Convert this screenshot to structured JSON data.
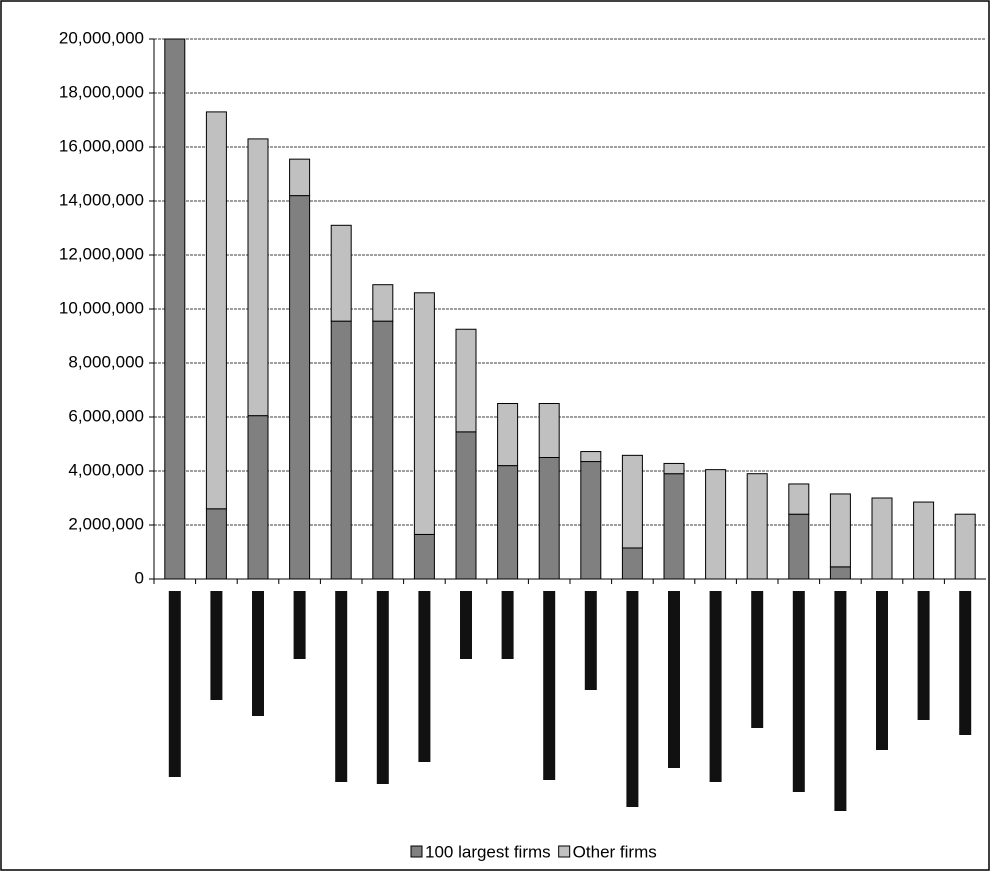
{
  "chart_data": {
    "type": "stacked-bar",
    "categories": [
      null,
      null,
      null,
      null,
      null,
      null,
      null,
      null,
      null,
      null,
      null,
      null,
      null,
      null,
      null,
      null,
      null,
      null,
      null,
      null
    ],
    "series": [
      {
        "name": "100 largest firms",
        "color": "#808080",
        "values": [
          20000000,
          2600000,
          6050000,
          14200000,
          9550000,
          9550000,
          1650000,
          5450000,
          4200000,
          4500000,
          4350000,
          1150000,
          3900000,
          0,
          0,
          2400000,
          450000,
          0,
          0,
          0
        ]
      },
      {
        "name": "Other firms",
        "color": "#c0c0c0",
        "values": [
          0,
          14700000,
          10250000,
          1350000,
          3550000,
          1350000,
          8950000,
          3800000,
          2300000,
          2000000,
          370000,
          3430000,
          380000,
          4050000,
          3900000,
          1120000,
          2700000,
          3000000,
          2850000,
          2400000
        ]
      }
    ],
    "ylim": [
      0,
      20000000
    ],
    "yticks": [
      0,
      {
        "value": 2000000,
        "label": "2,000,000"
      },
      {
        "value": 4000000,
        "label": "4,000,000"
      },
      {
        "value": 6000000,
        "label": "6,000,000"
      },
      {
        "value": 8000000,
        "label": "8,000,000"
      },
      {
        "value": 10000000,
        "label": "10,000,000"
      },
      {
        "value": 12000000,
        "label": "12,000,000"
      },
      {
        "value": 14000000,
        "label": "14,000,000"
      },
      {
        "value": 16000000,
        "label": "16,000,000"
      },
      {
        "value": 18000000,
        "label": "18,000,000"
      },
      {
        "value": 20000000,
        "label": "20,000,000"
      }
    ],
    "grid": true,
    "legend": "bottom"
  }
}
